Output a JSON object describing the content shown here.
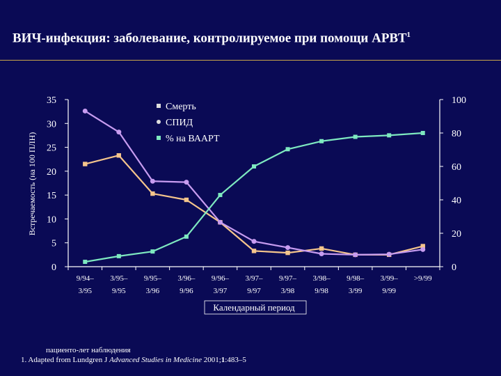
{
  "slide": {
    "title_main": "ВИЧ-инфекция: заболевание, контролируемое при помощи АРВТ",
    "title_sup": "1"
  },
  "footnote": {
    "line1": "пациенто-лет наблюдения",
    "line2_prefix": "1. Adapted from Lundgren J ",
    "line2_journal": "Advanced Studies in Medicine",
    "line2_year": " 2001;",
    "line2_volume": "1",
    "line2_pages": ":483–5"
  },
  "colors": {
    "background": "#0a0a55",
    "axes": "#ffffff",
    "title_rule": "#c9a64a"
  },
  "chart_data": {
    "type": "line",
    "title": "",
    "xlabel": "Календарный период",
    "ylabel_left": "Встречаемость (на 100 ПЛН)",
    "ylabel_right": "",
    "ylim_left": [
      0,
      35
    ],
    "ylim_right": [
      0,
      100
    ],
    "yticks_left": [
      "0",
      "5",
      "10",
      "15",
      "20",
      "25",
      "30",
      "35"
    ],
    "yticks_right": [
      "0",
      "20",
      "40",
      "60",
      "80",
      "100"
    ],
    "categories": [
      [
        "9/94–",
        "3/95"
      ],
      [
        "3/95–",
        "9/95"
      ],
      [
        "9/95–",
        "3/96"
      ],
      [
        "3/96–",
        "9/96"
      ],
      [
        "9/96–",
        "3/97"
      ],
      [
        "3/97–",
        "9/97"
      ],
      [
        "9/97–",
        "3/98"
      ],
      [
        "3/98–",
        "9/98"
      ],
      [
        "9/98–",
        "3/99"
      ],
      [
        "3/99–",
        "9/99"
      ],
      [
        ">9/99"
      ]
    ],
    "legend_position": "top-center",
    "series": [
      {
        "name": "Смерть",
        "axis": "left",
        "color": "#f5c58c",
        "marker": "square",
        "values": [
          21.5,
          23.3,
          15.3,
          14.0,
          9.3,
          3.3,
          2.9,
          3.8,
          2.5,
          2.5,
          4.3
        ]
      },
      {
        "name": "СПИД",
        "axis": "left",
        "color": "#c79cf0",
        "marker": "circle",
        "values": [
          32.6,
          28.2,
          17.9,
          17.7,
          9.3,
          5.3,
          4.0,
          2.7,
          2.5,
          2.6,
          3.6
        ]
      },
      {
        "name": "% на ВААРТ",
        "axis": "right",
        "color": "#7ee9c0",
        "marker": "small-square",
        "values": [
          2.9,
          6.3,
          9.1,
          18.0,
          42.9,
          60.0,
          70.3,
          75.1,
          77.7,
          78.6,
          80.0
        ]
      }
    ]
  }
}
